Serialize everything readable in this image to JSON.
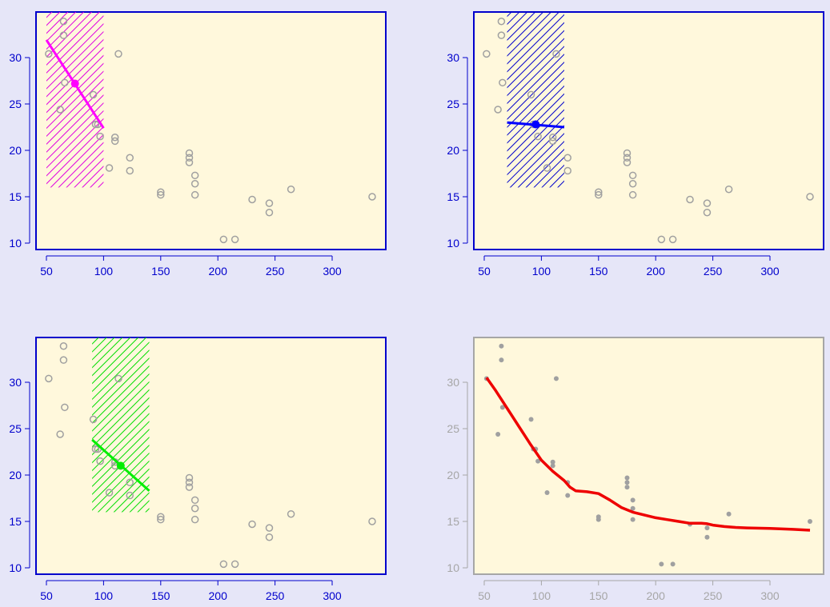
{
  "colors": {
    "figure_background": "#e6e6f8",
    "panel_background": "#fff8dc",
    "axis_blue": "#0000cc",
    "axis_gray": "#a6a6a6",
    "point_gray": "#a0a0a0",
    "loess_red": "#ee0000"
  },
  "chart_data": [
    {
      "type": "scatter",
      "panel": "top-left",
      "title": "",
      "xlabel": "",
      "ylabel": "",
      "xlim": [
        40,
        345
      ],
      "ylim": [
        9.5,
        35
      ],
      "x_ticks": [
        "50",
        "100",
        "150",
        "200",
        "250",
        "300"
      ],
      "y_ticks": [
        "10",
        "15",
        "20",
        "25",
        "30"
      ],
      "grid": false,
      "axis_color": "#0000cc",
      "point_style": "open-circle",
      "points": {
        "x": [
          52,
          62,
          65,
          65,
          66,
          91,
          93,
          95,
          97,
          105,
          110,
          110,
          113,
          123,
          123,
          150,
          150,
          175,
          175,
          175,
          180,
          180,
          180,
          205,
          215,
          230,
          245,
          245,
          264,
          335
        ],
        "y": [
          30.4,
          24.4,
          33.9,
          32.4,
          27.3,
          26.0,
          22.8,
          22.8,
          21.5,
          18.1,
          21.0,
          21.4,
          30.4,
          19.2,
          17.8,
          15.5,
          15.2,
          19.7,
          18.7,
          19.2,
          17.3,
          16.4,
          15.2,
          10.4,
          10.4,
          14.7,
          14.3,
          13.3,
          15.8,
          15.0
        ]
      },
      "window": {
        "x": [
          50,
          100
        ],
        "y": [
          16,
          35
        ],
        "color": "#e000e0",
        "hatch": "diagonal"
      },
      "local_fit": {
        "x": [
          50,
          100
        ],
        "y": [
          31.9,
          22.4
        ],
        "center": [
          75,
          27.2
        ],
        "color": "#ff00ff"
      }
    },
    {
      "type": "scatter",
      "panel": "top-right",
      "title": "",
      "xlabel": "",
      "ylabel": "",
      "xlim": [
        40,
        345
      ],
      "ylim": [
        9.5,
        35
      ],
      "x_ticks": [
        "50",
        "100",
        "150",
        "200",
        "250",
        "300"
      ],
      "y_ticks": [
        "10",
        "15",
        "20",
        "25",
        "30"
      ],
      "grid": false,
      "axis_color": "#0000cc",
      "point_style": "open-circle",
      "points": {
        "x": [
          52,
          62,
          65,
          65,
          66,
          91,
          93,
          95,
          97,
          105,
          110,
          110,
          113,
          123,
          123,
          150,
          150,
          175,
          175,
          175,
          180,
          180,
          180,
          205,
          215,
          230,
          245,
          245,
          264,
          335
        ],
        "y": [
          30.4,
          24.4,
          33.9,
          32.4,
          27.3,
          26.0,
          22.8,
          22.8,
          21.5,
          18.1,
          21.0,
          21.4,
          30.4,
          19.2,
          17.8,
          15.5,
          15.2,
          19.7,
          18.7,
          19.2,
          17.3,
          16.4,
          15.2,
          10.4,
          10.4,
          14.7,
          14.3,
          13.3,
          15.8,
          15.0
        ]
      },
      "window": {
        "x": [
          70,
          120
        ],
        "y": [
          16,
          35
        ],
        "color": "#0000cc",
        "hatch": "diagonal"
      },
      "local_fit": {
        "x": [
          70,
          120
        ],
        "y": [
          23.0,
          22.5
        ],
        "center": [
          95,
          22.8
        ],
        "color": "#0000ff"
      }
    },
    {
      "type": "scatter",
      "panel": "bottom-left",
      "title": "",
      "xlabel": "",
      "ylabel": "",
      "xlim": [
        40,
        345
      ],
      "ylim": [
        9.5,
        35
      ],
      "x_ticks": [
        "50",
        "100",
        "150",
        "200",
        "250",
        "300"
      ],
      "y_ticks": [
        "10",
        "15",
        "20",
        "25",
        "30"
      ],
      "grid": false,
      "axis_color": "#0000cc",
      "point_style": "open-circle",
      "points": {
        "x": [
          52,
          62,
          65,
          65,
          66,
          91,
          93,
          95,
          97,
          105,
          110,
          110,
          113,
          123,
          123,
          150,
          150,
          175,
          175,
          175,
          180,
          180,
          180,
          205,
          215,
          230,
          245,
          245,
          264,
          335
        ],
        "y": [
          30.4,
          24.4,
          33.9,
          32.4,
          27.3,
          26.0,
          22.8,
          22.8,
          21.5,
          18.1,
          21.0,
          21.4,
          30.4,
          19.2,
          17.8,
          15.5,
          15.2,
          19.7,
          18.7,
          19.2,
          17.3,
          16.4,
          15.2,
          10.4,
          10.4,
          14.7,
          14.3,
          13.3,
          15.8,
          15.0
        ]
      },
      "window": {
        "x": [
          90,
          140
        ],
        "y": [
          16,
          35
        ],
        "color": "#00dd00",
        "hatch": "diagonal"
      },
      "local_fit": {
        "x": [
          90,
          140
        ],
        "y": [
          23.8,
          18.3
        ],
        "center": [
          115,
          21.0
        ],
        "color": "#00ee00"
      }
    },
    {
      "type": "scatter",
      "panel": "bottom-right",
      "title": "",
      "xlabel": "",
      "ylabel": "",
      "xlim": [
        40,
        345
      ],
      "ylim": [
        9.5,
        35
      ],
      "x_ticks": [
        "50",
        "100",
        "150",
        "200",
        "250",
        "300"
      ],
      "y_ticks": [
        "10",
        "15",
        "20",
        "25",
        "30"
      ],
      "grid": false,
      "axis_color": "#a6a6a6",
      "point_style": "filled-dot",
      "points": {
        "x": [
          52,
          62,
          65,
          65,
          66,
          91,
          93,
          95,
          97,
          105,
          110,
          110,
          113,
          123,
          123,
          150,
          150,
          175,
          175,
          175,
          180,
          180,
          180,
          205,
          215,
          230,
          245,
          245,
          264,
          335
        ],
        "y": [
          30.4,
          24.4,
          33.9,
          32.4,
          27.3,
          26.0,
          22.8,
          22.8,
          21.5,
          18.1,
          21.0,
          21.4,
          30.4,
          19.2,
          17.8,
          15.5,
          15.2,
          19.7,
          18.7,
          19.2,
          17.3,
          16.4,
          15.2,
          10.4,
          10.4,
          14.7,
          14.3,
          13.3,
          15.8,
          15.0
        ]
      },
      "smooth_fit": {
        "color": "#ee0000",
        "x": [
          52,
          60,
          70,
          80,
          90,
          100,
          110,
          120,
          125,
          130,
          140,
          150,
          160,
          170,
          180,
          190,
          200,
          210,
          220,
          230,
          240,
          245,
          250,
          260,
          270,
          280,
          300,
          320,
          335
        ],
        "y": [
          30.5,
          29.1,
          27.2,
          25.3,
          23.4,
          21.6,
          20.4,
          19.4,
          18.7,
          18.3,
          18.2,
          18.0,
          17.3,
          16.5,
          16.0,
          15.7,
          15.4,
          15.2,
          15.0,
          14.8,
          14.8,
          14.75,
          14.6,
          14.45,
          14.35,
          14.3,
          14.25,
          14.15,
          14.05
        ]
      }
    }
  ]
}
